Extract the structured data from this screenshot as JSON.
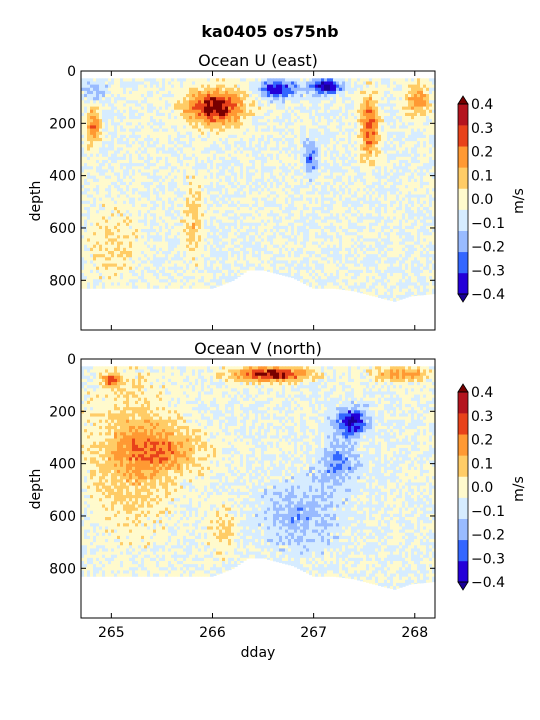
{
  "figure": {
    "suptitle": "ka0405 os75nb",
    "xlabel": "dday"
  },
  "chart_data": [
    {
      "type": "heatmap",
      "title": "Ocean U (east)",
      "xlabel": "",
      "ylabel": "depth",
      "xlim": [
        264.7,
        268.2
      ],
      "ylim": [
        990,
        0
      ],
      "y_inverted": true,
      "xticks": [],
      "xtick_labels": [],
      "yticks": [
        0,
        200,
        400,
        600,
        800
      ],
      "ytick_labels": [
        "0",
        "200",
        "400",
        "600",
        "800"
      ],
      "data_top_depth": 28,
      "bottom_depth_profile": {
        "x": [
          264.7,
          265.2,
          265.7,
          266.0,
          266.2,
          266.35,
          266.5,
          266.8,
          267.0,
          267.2,
          267.4,
          267.6,
          267.8,
          267.95,
          268.2
        ],
        "depth": [
          830,
          830,
          830,
          830,
          800,
          760,
          760,
          790,
          830,
          830,
          840,
          860,
          880,
          860,
          850
        ]
      },
      "features": [
        {
          "x": [
            264.75,
            264.9
          ],
          "depth": [
            130,
            300
          ],
          "value": 0.3
        },
        {
          "x": [
            265.7,
            266.35
          ],
          "depth": [
            60,
            220
          ],
          "value": 0.45
        },
        {
          "x": [
            266.45,
            266.85
          ],
          "depth": [
            28,
            110
          ],
          "value": -0.4
        },
        {
          "x": [
            266.95,
            267.3
          ],
          "depth": [
            28,
            90
          ],
          "value": -0.45
        },
        {
          "x": [
            267.45,
            267.65
          ],
          "depth": [
            80,
            350
          ],
          "value": 0.35
        },
        {
          "x": [
            267.9,
            268.15
          ],
          "depth": [
            40,
            180
          ],
          "value": 0.25
        },
        {
          "x": [
            266.9,
            267.05
          ],
          "depth": [
            250,
            400
          ],
          "value": -0.25
        },
        {
          "x": [
            265.7,
            265.9
          ],
          "depth": [
            380,
            750
          ],
          "value": 0.15
        },
        {
          "x": [
            264.7,
            265.3
          ],
          "depth": [
            500,
            830
          ],
          "value": 0.1
        },
        {
          "x": [
            264.7,
            264.95
          ],
          "depth": [
            28,
            120
          ],
          "value": -0.15
        }
      ]
    },
    {
      "type": "heatmap",
      "title": "Ocean V (north)",
      "xlabel": "dday",
      "ylabel": "depth",
      "xlim": [
        264.7,
        268.2
      ],
      "ylim": [
        990,
        0
      ],
      "y_inverted": true,
      "xticks": [
        265,
        266,
        267,
        268
      ],
      "xtick_labels": [
        "265",
        "266",
        "267",
        "268"
      ],
      "yticks": [
        0,
        200,
        400,
        600,
        800
      ],
      "ytick_labels": [
        "0",
        "200",
        "400",
        "600",
        "800"
      ],
      "data_top_depth": 28,
      "bottom_depth_profile": {
        "x": [
          264.7,
          265.2,
          265.7,
          266.0,
          266.2,
          266.35,
          266.5,
          266.8,
          267.0,
          267.2,
          267.4,
          267.6,
          267.8,
          267.95,
          268.2
        ],
        "depth": [
          830,
          830,
          830,
          830,
          800,
          760,
          760,
          790,
          830,
          830,
          840,
          860,
          880,
          860,
          850
        ]
      },
      "features": [
        {
          "x": [
            266.15,
            267.0
          ],
          "depth": [
            28,
            90
          ],
          "value": 0.45
        },
        {
          "x": [
            267.2,
            267.55
          ],
          "depth": [
            180,
            300
          ],
          "value": -0.4
        },
        {
          "x": [
            264.7,
            265.7
          ],
          "depth": [
            28,
            700
          ],
          "value": 0.15
        },
        {
          "x": [
            265.0,
            266.0
          ],
          "depth": [
            250,
            450
          ],
          "value": 0.2
        },
        {
          "x": [
            265.95,
            266.25
          ],
          "depth": [
            550,
            760
          ],
          "value": 0.15
        },
        {
          "x": [
            266.4,
            267.3
          ],
          "depth": [
            450,
            750
          ],
          "value": -0.15
        },
        {
          "x": [
            267.05,
            267.45
          ],
          "depth": [
            300,
            500
          ],
          "value": -0.2
        },
        {
          "x": [
            267.55,
            268.2
          ],
          "depth": [
            28,
            90
          ],
          "value": 0.25
        },
        {
          "x": [
            264.9,
            265.1
          ],
          "depth": [
            50,
            110
          ],
          "value": 0.3
        }
      ]
    }
  ],
  "colorbar": {
    "label": "m/s",
    "levels": [
      -0.4,
      -0.3,
      -0.2,
      -0.1,
      0.0,
      0.1,
      0.2,
      0.3,
      0.4
    ],
    "tick_labels": [
      "−0.4",
      "−0.3",
      "−0.2",
      "−0.1",
      "0.0",
      "0.1",
      "0.2",
      "0.3",
      "0.4"
    ],
    "colors": [
      "#2400d8",
      "#3366ff",
      "#99bbff",
      "#d6ecff",
      "#fffacd",
      "#ffcc66",
      "#ff9933",
      "#e8421a",
      "#b4141e"
    ],
    "under_color": "#1a0096",
    "over_color": "#780000",
    "extend": "both"
  }
}
